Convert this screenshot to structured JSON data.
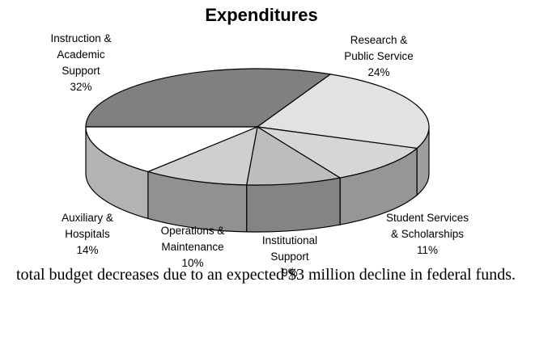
{
  "chart_data": {
    "type": "pie",
    "title": "Expenditures",
    "categories": [
      "Instruction & Academic Support",
      "Research & Public Service",
      "Student Services & Scholarships",
      "Institutional Support",
      "Operations & Maintenance",
      "Auxiliary & Hospitals"
    ],
    "values": [
      32,
      24,
      11,
      9,
      10,
      14
    ],
    "value_labels": [
      "32%",
      "24%",
      "11%",
      "9%",
      "10%",
      "14%"
    ],
    "colors": [
      "#808080",
      "#e2e2e2",
      "#d6d6d6",
      "#bdbdbd",
      "#cfcfcf",
      "#ffffff"
    ]
  },
  "body_text": "total budget decreases due to an expected $3 million decline in federal funds."
}
